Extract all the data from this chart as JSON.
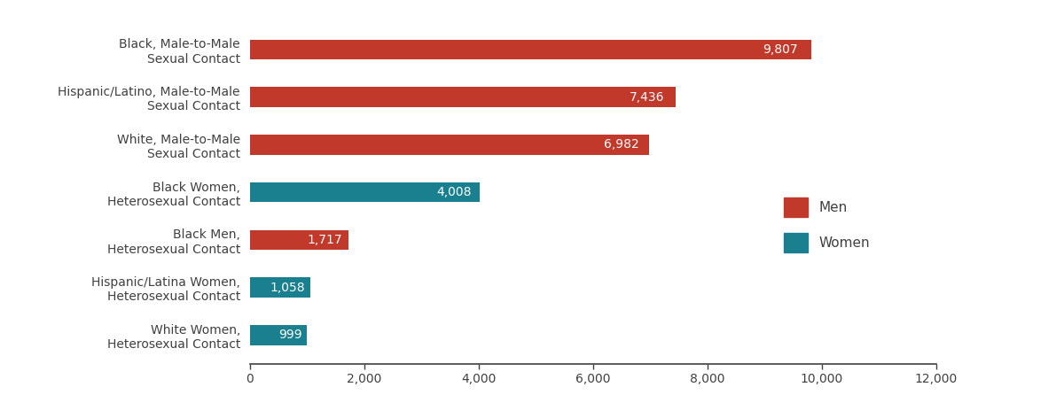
{
  "categories": [
    "Black, Male-to-Male\nSexual Contact",
    "Hispanic/Latino, Male-to-Male\nSexual Contact",
    "White, Male-to-Male\nSexual Contact",
    "Black Women,\nHeterosexual Contact",
    "Black Men,\nHeterosexual Contact",
    "Hispanic/Latina Women,\nHeterosexual Contact",
    "White Women,\nHeterosexual Contact"
  ],
  "values": [
    9807,
    7436,
    6982,
    4008,
    1717,
    1058,
    999
  ],
  "bar_colors": [
    "#c0392b",
    "#c0392b",
    "#c0392b",
    "#1a7f8e",
    "#c0392b",
    "#1a7f8e",
    "#1a7f8e"
  ],
  "value_labels": [
    "9,807",
    "7,436",
    "6,982",
    "4,008",
    "1,717",
    "1,058",
    "999"
  ],
  "men_color": "#c0392b",
  "women_color": "#1a7f8e",
  "text_color": "#404040",
  "bar_label_color": "#ffffff",
  "xlim": [
    0,
    12000
  ],
  "xticks": [
    0,
    2000,
    4000,
    6000,
    8000,
    10000,
    12000
  ],
  "xtick_labels": [
    "0",
    "2,000",
    "4,000",
    "6,000",
    "8,000",
    "10,000",
    "12,000"
  ],
  "legend_men": "Men",
  "legend_women": "Women",
  "background_color": "#ffffff",
  "bar_height": 0.42,
  "label_fontsize": 10,
  "tick_fontsize": 10,
  "value_fontsize": 10
}
